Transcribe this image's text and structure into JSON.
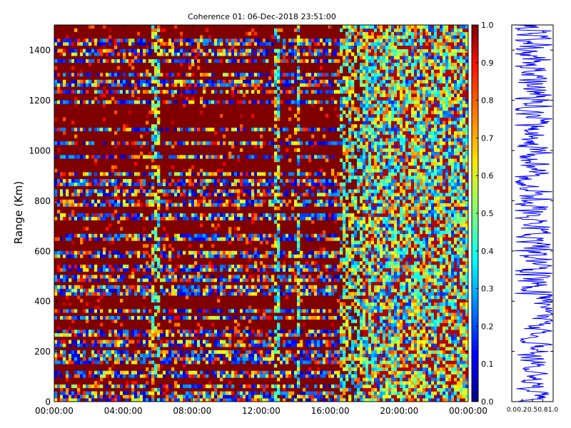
{
  "chart_data": [
    {
      "type": "heatmap",
      "title": "Coherence 01: 06-Dec-2018 23:51:00",
      "xlabel": "",
      "ylabel": "Range (Km)",
      "xlim": [
        "00:00:00",
        "00:00:00"
      ],
      "ylim": [
        0,
        1500
      ],
      "x_tick_labels": [
        "00:00:00",
        "04:00:00",
        "08:00:00",
        "12:00:00",
        "16:00:00",
        "20:00:00",
        "00:00:00"
      ],
      "y_ticks": [
        0,
        200,
        400,
        600,
        800,
        1000,
        1200,
        1400
      ],
      "colorbar": {
        "colormap": "jet",
        "range": [
          0.0,
          1.0
        ],
        "ticks": [
          "0.0",
          "0.1",
          "0.2",
          "0.3",
          "0.4",
          "0.5",
          "0.6",
          "0.7",
          "0.8",
          "0.9",
          "1.0"
        ]
      },
      "dominant_value": 1.0,
      "low_coherence_range_bands_km": [
        8,
        25,
        60,
        105,
        160,
        195,
        235,
        270,
        335,
        360,
        440,
        455,
        490,
        530,
        590,
        655,
        735,
        790,
        830,
        870,
        905,
        975,
        1030,
        1085,
        1195,
        1235,
        1265,
        1300,
        1355,
        1395,
        1430
      ],
      "low_coherence_time_windows_h": [
        [
          5.6,
          6.2
        ],
        [
          12.7,
          13.0
        ],
        [
          14.1,
          14.2
        ],
        [
          16.6,
          17.8
        ],
        [
          17.8,
          24.0
        ]
      ]
    },
    {
      "type": "line",
      "title": "",
      "xlabel": "",
      "ylabel": "",
      "xlim": [
        0.0,
        1.0
      ],
      "ylim": [
        0,
        1500
      ],
      "x_tick_labels": [
        "0.0",
        "0.2",
        "0.5",
        "0.8",
        "1.0"
      ],
      "y_ticks": [
        0,
        200,
        400,
        600,
        800,
        1000,
        1200,
        1400
      ],
      "color": "#0000ff",
      "description_of_series": "mean coherence vs range"
    }
  ]
}
